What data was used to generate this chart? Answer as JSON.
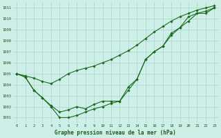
{
  "title": "Graphe pression niveau de la mer (hPa)",
  "bg_color": "#ceeee8",
  "grid_color": "#aad4cc",
  "line_color": "#1a6b1a",
  "marker_color": "#1a6b1a",
  "xlim": [
    -0.5,
    23.5
  ],
  "ylim": [
    1000.5,
    1011.5
  ],
  "yticks": [
    1001,
    1002,
    1003,
    1004,
    1005,
    1006,
    1007,
    1008,
    1009,
    1010,
    1011
  ],
  "xticks": [
    0,
    1,
    2,
    3,
    4,
    5,
    6,
    7,
    8,
    9,
    10,
    11,
    12,
    13,
    14,
    15,
    16,
    17,
    18,
    19,
    20,
    21,
    22,
    23
  ],
  "series1": {
    "x": [
      0,
      1,
      2,
      3,
      4,
      5,
      6,
      7,
      8,
      9,
      10,
      11,
      12,
      13,
      14,
      15,
      16,
      17,
      18,
      19,
      20,
      21,
      22,
      23
    ],
    "y": [
      1005.0,
      1004.8,
      1004.6,
      1004.3,
      1004.1,
      1004.5,
      1005.0,
      1005.3,
      1005.5,
      1005.7,
      1006.0,
      1006.3,
      1006.7,
      1007.1,
      1007.6,
      1008.2,
      1008.8,
      1009.3,
      1009.8,
      1010.2,
      1010.5,
      1010.8,
      1011.0,
      1011.2
    ]
  },
  "series2": {
    "x": [
      0,
      1,
      2,
      3,
      4,
      5,
      6,
      7,
      8,
      9,
      10,
      11,
      12,
      13,
      14,
      15,
      16,
      17,
      18,
      19,
      20,
      21,
      22,
      23
    ],
    "y": [
      1005.0,
      1004.7,
      1003.5,
      1002.8,
      1002.0,
      1001.0,
      1001.0,
      1001.2,
      1001.5,
      1001.8,
      1002.0,
      1002.3,
      1002.5,
      1003.5,
      1004.5,
      1006.3,
      1007.0,
      1007.5,
      1008.5,
      1009.2,
      1010.2,
      1010.5,
      1010.7,
      1011.0
    ]
  },
  "series3": {
    "x": [
      0,
      1,
      2,
      3,
      4,
      5,
      6,
      7,
      8,
      9,
      10,
      11,
      12,
      13,
      14,
      15,
      16,
      17,
      18,
      19,
      20,
      21,
      22,
      23
    ],
    "y": [
      1005.0,
      1004.7,
      1003.5,
      1002.8,
      1002.1,
      1001.5,
      1001.7,
      1002.0,
      1001.8,
      1002.2,
      1002.5,
      1002.5,
      1002.5,
      1003.8,
      1004.5,
      1006.3,
      1007.0,
      1007.5,
      1008.7,
      1009.2,
      1009.8,
      1010.5,
      1010.5,
      1011.0
    ]
  }
}
